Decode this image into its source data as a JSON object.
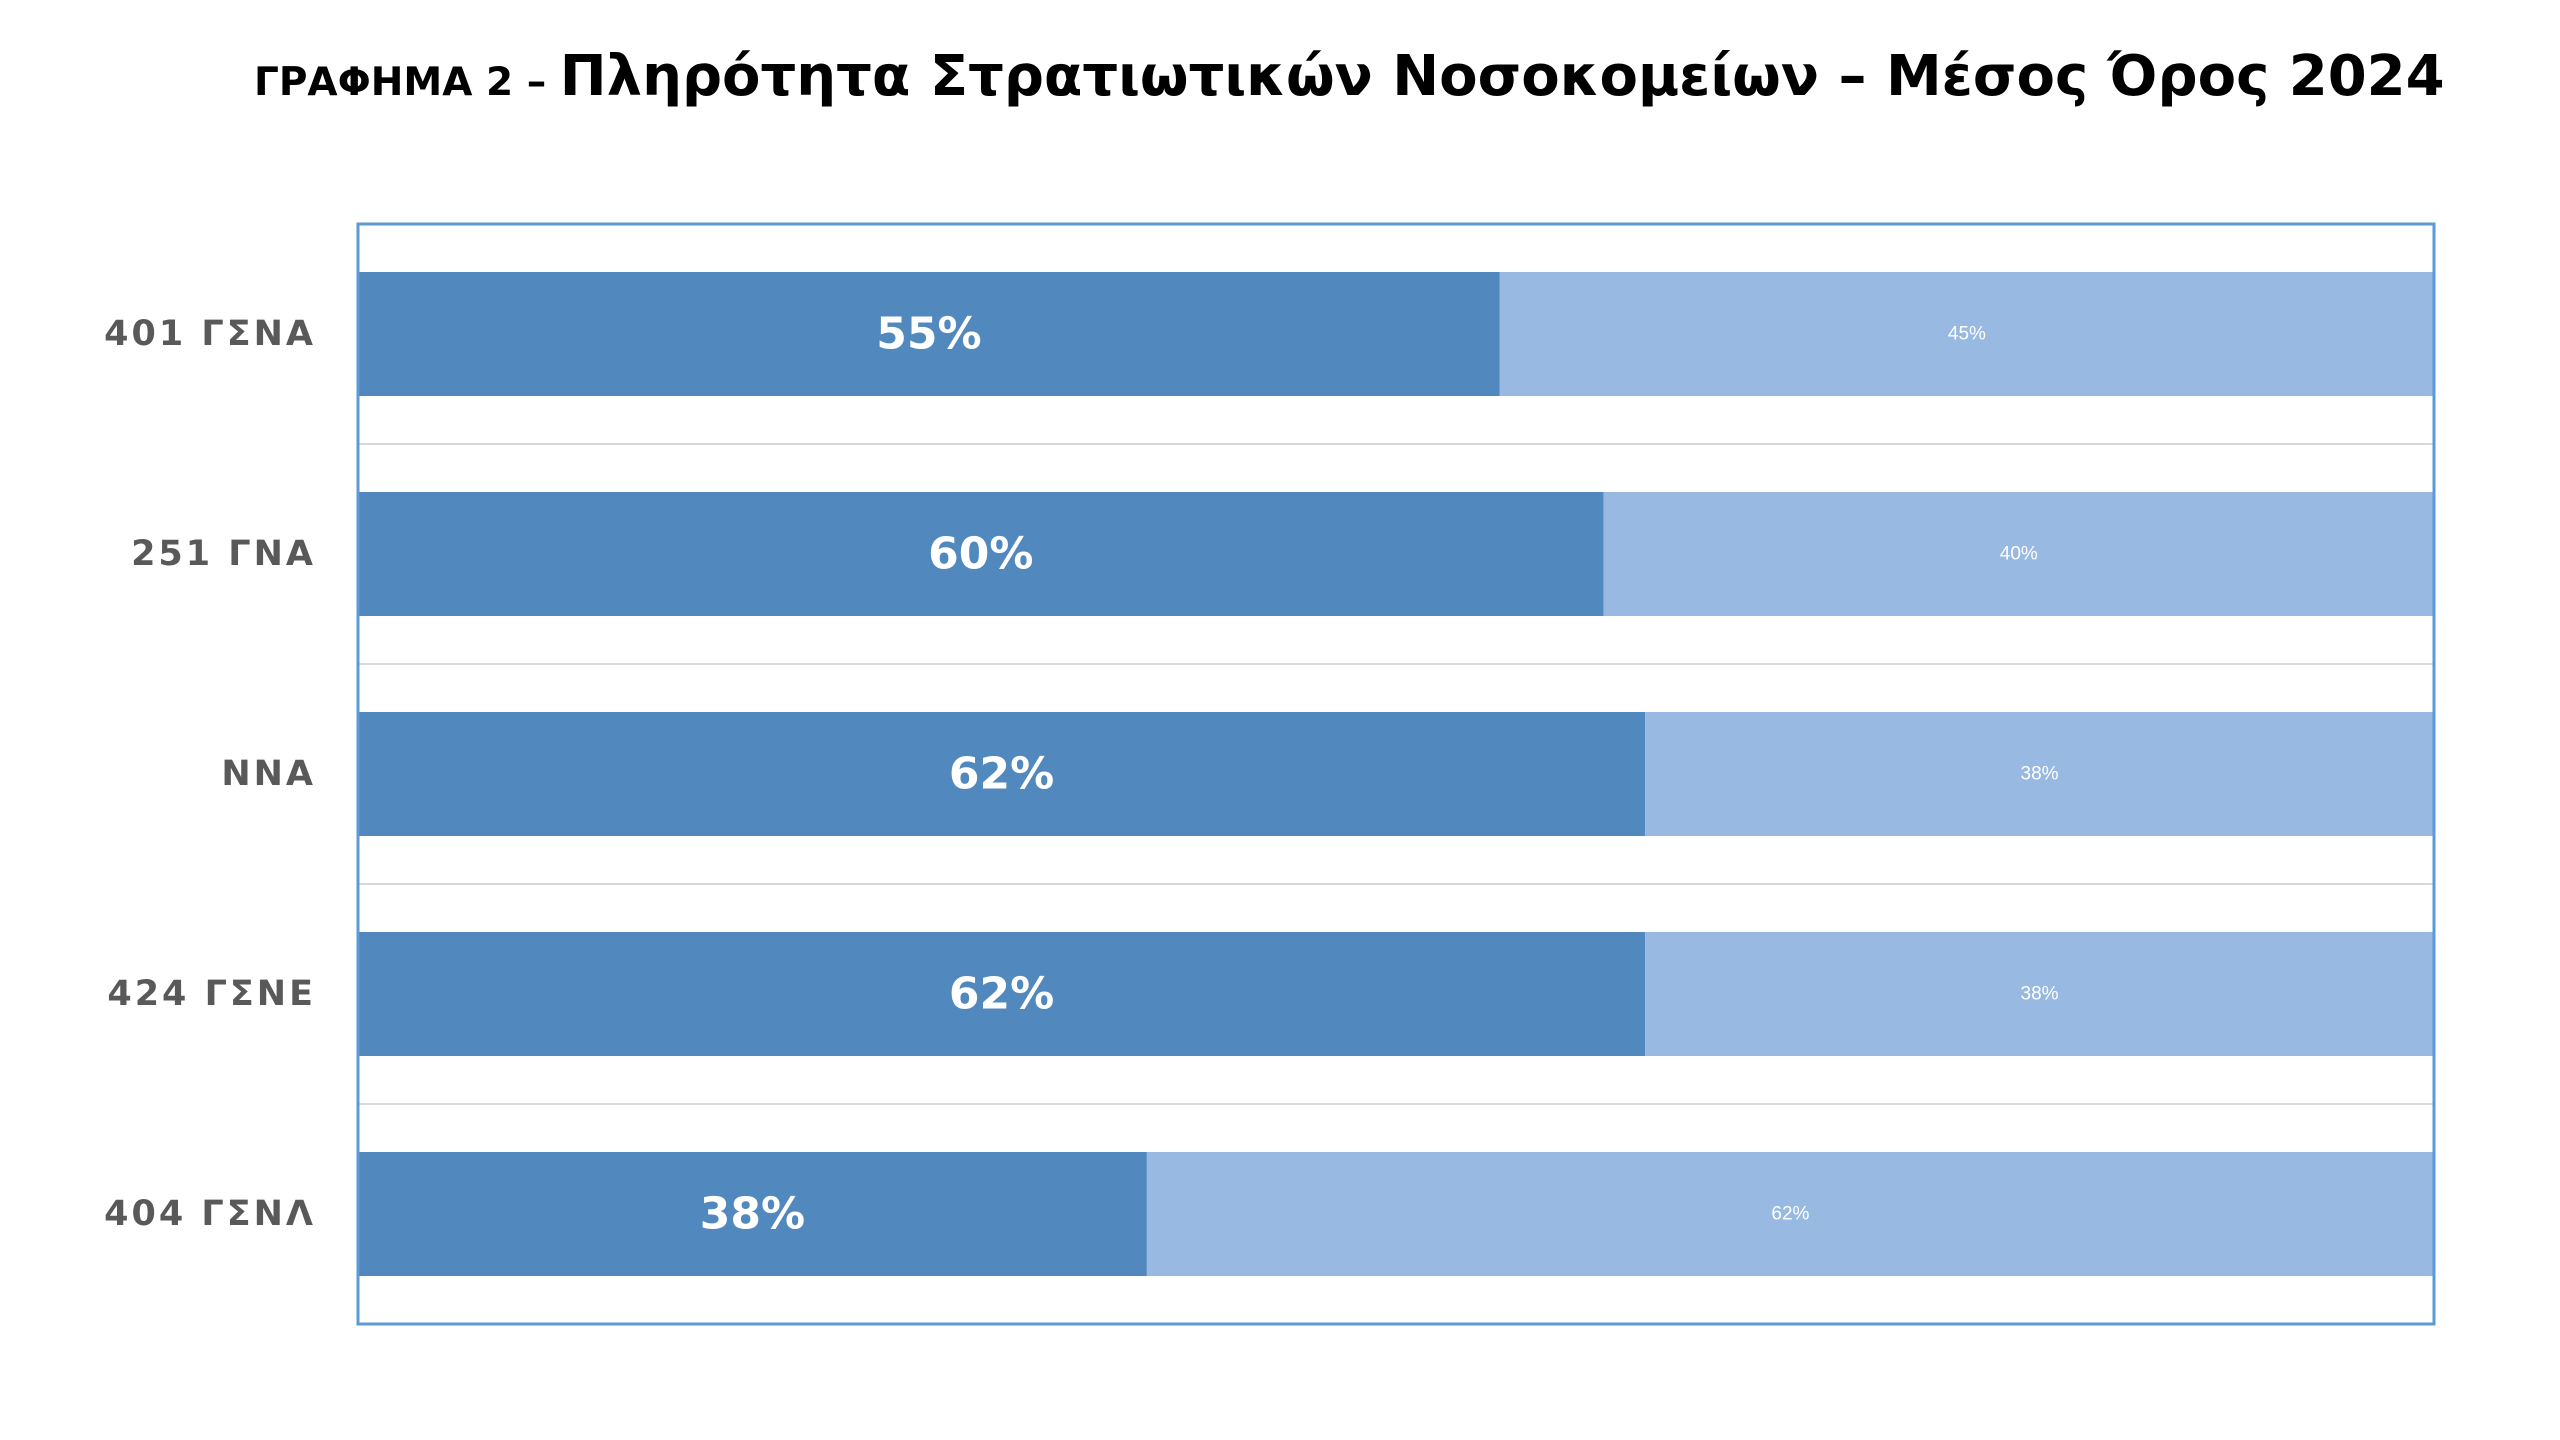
{
  "title": {
    "prefix": "ΓΡΑΦΗΜΑ 2 – ",
    "main": "Πληρότητα Στρατιωτικών Νοσοκομείων – Μέσος Όρος 2024"
  },
  "colors": {
    "primary": "#5189BE",
    "secondary": "#98B9E1",
    "frame": "#5B9BD5",
    "grid": "#D9D9D9",
    "category_text": "#595959"
  },
  "chart_data": {
    "type": "bar",
    "orientation": "horizontal",
    "stacked": "100%",
    "categories": [
      "401 ΓΣΝΑ",
      "251 ΓΝΑ",
      "ΝΝΑ",
      "424 ΓΣΝΕ",
      "404 ΓΣΝΛ"
    ],
    "series": [
      {
        "values": [
          55,
          60,
          62,
          62,
          38
        ],
        "labels": [
          "55%",
          "60%",
          "62%",
          "62%",
          "38%"
        ]
      },
      {
        "values": [
          45,
          40,
          38,
          38,
          62
        ],
        "labels": [
          "45%",
          "40%",
          "38%",
          "38%",
          "62%"
        ]
      }
    ],
    "xlim": [
      0,
      100
    ],
    "legend": "none",
    "grid": "horizontal"
  }
}
